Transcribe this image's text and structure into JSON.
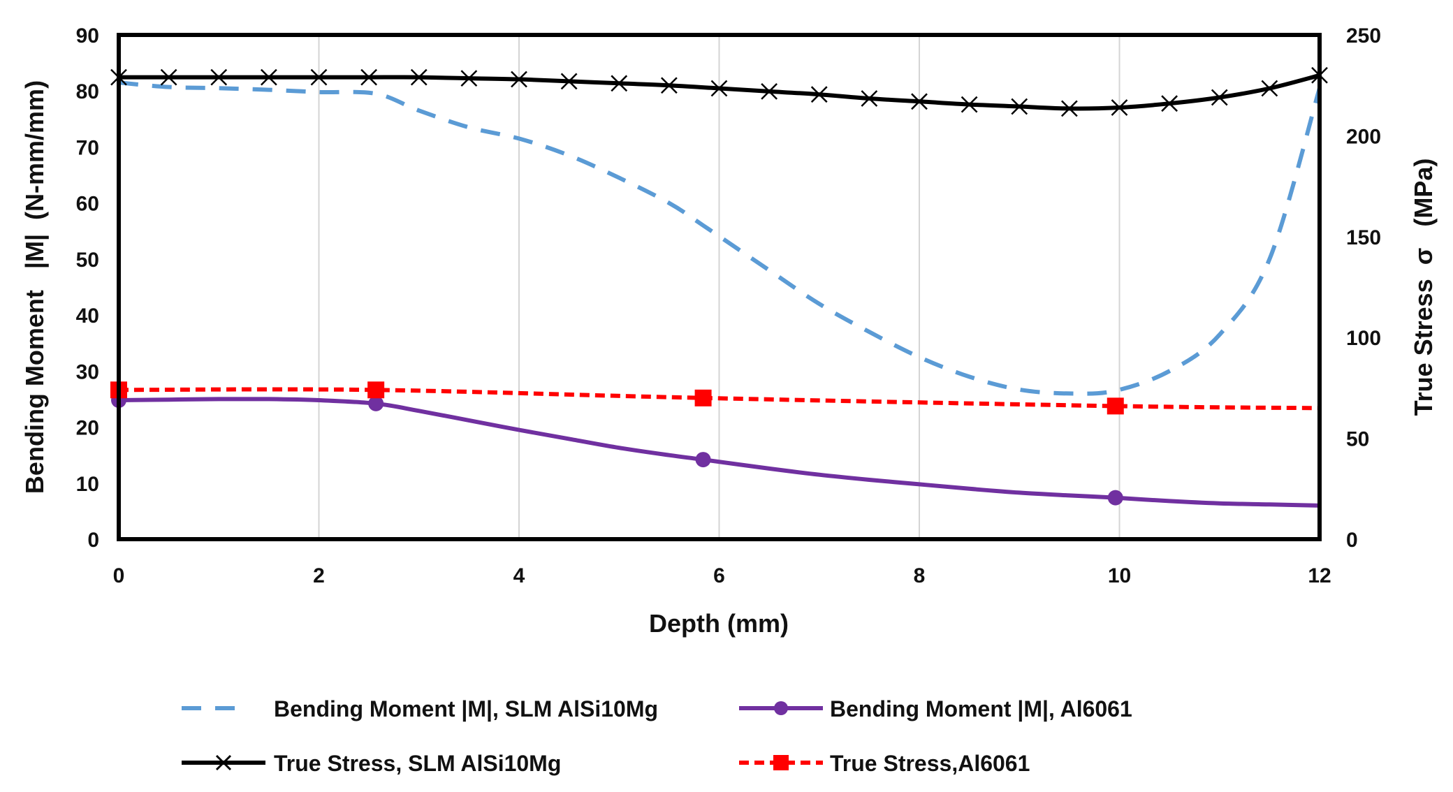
{
  "chart_data": {
    "type": "line",
    "xlabel": "Depth (mm)",
    "ylabel_left": "Bending Moment   |M|  (N-mm/mm)",
    "ylabel_right": "True Stress  σ   (MPa)",
    "xlim": [
      0,
      12
    ],
    "ylim_left": [
      0,
      90
    ],
    "ylim_right": [
      0,
      250
    ],
    "xticks": [
      "0",
      "2",
      "4",
      "6",
      "8",
      "10",
      "12"
    ],
    "yticks_left": [
      "0",
      "10",
      "20",
      "30",
      "40",
      "50",
      "60",
      "70",
      "80",
      "90"
    ],
    "yticks_right": [
      "0",
      "50",
      "100",
      "150",
      "200",
      "250"
    ],
    "grid": "vertical",
    "legend_position": "bottom",
    "series": [
      {
        "name": "Bending Moment |M|, SLM AlSi10Mg",
        "axis": "left",
        "color": "#5b9bd5",
        "style": "dashed",
        "marker": "none",
        "x": [
          0,
          0.5,
          1,
          1.5,
          2,
          2.57,
          3,
          3.5,
          4,
          4.5,
          5,
          5.5,
          5.84,
          6.5,
          7,
          7.5,
          8,
          8.5,
          9,
          9.5,
          9.96,
          10.5,
          11,
          11.5,
          12
        ],
        "values": [
          81.5,
          80.7,
          80.5,
          80.2,
          79.8,
          79.5,
          76.5,
          73.5,
          71.5,
          68.5,
          64.5,
          60.0,
          56.0,
          48.0,
          42.0,
          37.0,
          32.5,
          29.0,
          26.7,
          26.0,
          26.5,
          30.0,
          36.5,
          50.0,
          80.5
        ],
        "markers_x": []
      },
      {
        "name": "Bending Moment |M|, Al6061",
        "axis": "left",
        "color": "#7030a0",
        "style": "solid",
        "marker": "circle",
        "x": [
          0,
          0.5,
          1,
          1.5,
          2,
          2.57,
          3,
          3.5,
          4,
          4.5,
          5,
          5.5,
          5.84,
          6.5,
          7,
          7.5,
          8,
          8.5,
          9,
          9.5,
          9.96,
          10.5,
          11,
          11.5,
          12
        ],
        "values": [
          24.8,
          24.9,
          25.0,
          25.0,
          24.8,
          24.2,
          22.9,
          21.2,
          19.5,
          17.9,
          16.3,
          15.0,
          14.2,
          12.6,
          11.5,
          10.6,
          9.8,
          9.0,
          8.3,
          7.8,
          7.4,
          6.8,
          6.4,
          6.2,
          6.0
        ],
        "markers_x": [
          0,
          2.57,
          5.84,
          9.96
        ]
      },
      {
        "name": "True Stress, SLM AlSi10Mg",
        "axis": "right",
        "color": "#000000",
        "style": "solid",
        "marker": "x",
        "x": [
          0,
          0.5,
          1,
          1.5,
          2,
          2.5,
          3,
          3.5,
          4,
          4.5,
          5,
          5.5,
          6,
          6.5,
          7,
          7.5,
          8,
          8.5,
          9,
          9.5,
          10,
          10.5,
          11,
          11.5,
          12
        ],
        "values": [
          229.0,
          229.0,
          229.0,
          229.0,
          229.0,
          229.0,
          229.0,
          228.5,
          228.0,
          227.0,
          226.0,
          225.0,
          223.5,
          222.0,
          220.5,
          218.5,
          217.0,
          215.5,
          214.5,
          213.5,
          214.0,
          216.0,
          219.0,
          223.5,
          230.0
        ],
        "markers_x": [
          0,
          0.5,
          1,
          1.5,
          2,
          2.5,
          3,
          3.5,
          4,
          4.5,
          5,
          5.5,
          6,
          6.5,
          7,
          7.5,
          8,
          8.5,
          9,
          9.5,
          10,
          10.5,
          11,
          11.5,
          12
        ]
      },
      {
        "name": "True Stress,Al6061",
        "axis": "right",
        "color": "#ff0000",
        "style": "dashed",
        "marker": "square",
        "x": [
          0,
          2.57,
          5.84,
          9.96,
          12
        ],
        "values": [
          74.0,
          74.0,
          70.0,
          66.0,
          65.0
        ],
        "markers_x": [
          0,
          2.57,
          5.84,
          9.96
        ]
      }
    ]
  }
}
